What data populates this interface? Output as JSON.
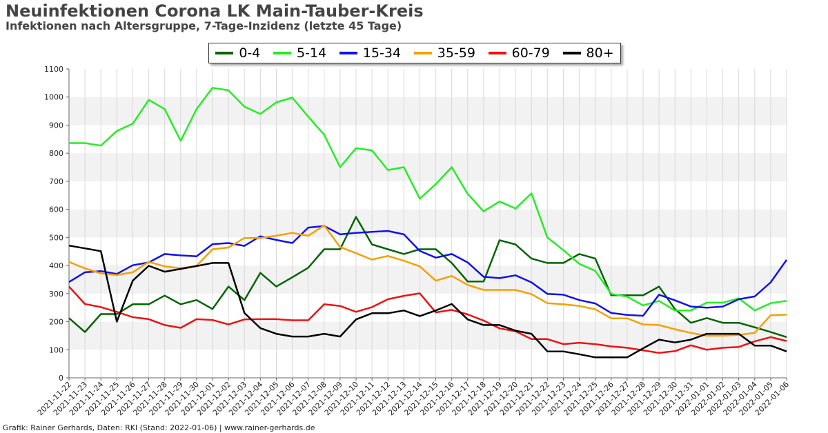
{
  "title": "Neuinfektionen Corona LK Main-Tauber-Kreis",
  "subtitle": "Infektionen nach Altersgruppe, 7-Tage-Inzidenz (letzte 45 Tage)",
  "footer": "Grafik: Rainer Gerhards, Daten: RKI (Stand: 2022-01-06) | www.rainer-gerhards.de",
  "chart_data": {
    "type": "line",
    "ylim": [
      0,
      1100
    ],
    "yticks": [
      0,
      100,
      200,
      300,
      400,
      500,
      600,
      700,
      800,
      900,
      1000,
      1100
    ],
    "grid": true,
    "legend_position": "top-center",
    "x": [
      "2021-11-22",
      "2021-11-23",
      "2021-11-24",
      "2021-11-25",
      "2021-11-26",
      "2021-11-27",
      "2021-11-28",
      "2021-11-29",
      "2021-11-30",
      "2021-12-01",
      "2021-12-02",
      "2021-12-03",
      "2021-12-04",
      "2021-12-05",
      "2021-12-06",
      "2021-12-07",
      "2021-12-08",
      "2021-12-09",
      "2021-12-10",
      "2021-12-11",
      "2021-12-12",
      "2021-12-13",
      "2021-12-14",
      "2021-12-15",
      "2021-12-16",
      "2021-12-17",
      "2021-12-18",
      "2021-12-19",
      "2021-12-20",
      "2021-12-21",
      "2021-12-22",
      "2021-12-23",
      "2021-12-24",
      "2021-12-25",
      "2021-12-26",
      "2021-12-27",
      "2021-12-28",
      "2021-12-29",
      "2021-12-30",
      "2021-12-31",
      "2022-01-01",
      "2022-01-02",
      "2022-01-03",
      "2022-01-04",
      "2022-01-05",
      "2022-01-06"
    ],
    "series": [
      {
        "name": "0-4",
        "color": "#006400",
        "values": [
          213,
          163,
          227,
          227,
          262,
          262,
          293,
          262,
          277,
          245,
          325,
          277,
          374,
          325,
          358,
          392,
          458,
          458,
          573,
          475,
          458,
          441,
          458,
          458,
          409,
          343,
          343,
          490,
          475,
          425,
          409,
          409,
          441,
          425,
          294,
          294,
          294,
          325,
          245,
          196,
          213,
          196,
          196,
          180,
          163,
          145
        ]
      },
      {
        "name": "5-14",
        "color": "#22ee22",
        "values": [
          836,
          836,
          827,
          879,
          905,
          990,
          957,
          844,
          957,
          1033,
          1024,
          966,
          940,
          981,
          998,
          930,
          866,
          750,
          818,
          810,
          740,
          750,
          638,
          690,
          750,
          655,
          593,
          628,
          603,
          657,
          500,
          455,
          406,
          381,
          299,
          289,
          258,
          274,
          240,
          240,
          268,
          268,
          283,
          240,
          266,
          274
        ]
      },
      {
        "name": "15-34",
        "color": "#1010ee",
        "values": [
          341,
          376,
          380,
          370,
          401,
          411,
          441,
          436,
          433,
          476,
          480,
          470,
          504,
          491,
          480,
          535,
          541,
          511,
          516,
          520,
          523,
          511,
          452,
          428,
          441,
          411,
          360,
          355,
          365,
          340,
          299,
          296,
          277,
          265,
          231,
          224,
          221,
          296,
          276,
          254,
          250,
          254,
          280,
          290,
          340,
          420
        ]
      },
      {
        "name": "35-59",
        "color": "#f5a000",
        "values": [
          413,
          390,
          372,
          366,
          376,
          413,
          397,
          390,
          399,
          458,
          464,
          498,
          498,
          506,
          516,
          506,
          543,
          466,
          444,
          421,
          434,
          417,
          397,
          346,
          363,
          331,
          313,
          313,
          313,
          298,
          266,
          262,
          256,
          244,
          212,
          212,
          190,
          188,
          173,
          160,
          150,
          150,
          153,
          160,
          223,
          225
        ]
      },
      {
        "name": "60-79",
        "color": "#ee1111",
        "values": [
          325,
          263,
          252,
          235,
          216,
          209,
          188,
          178,
          209,
          206,
          190,
          208,
          209,
          209,
          205,
          205,
          262,
          256,
          235,
          252,
          280,
          292,
          301,
          233,
          242,
          226,
          204,
          176,
          166,
          138,
          138,
          120,
          125,
          120,
          112,
          107,
          98,
          89,
          95,
          116,
          100,
          107,
          110,
          130,
          145,
          131
        ]
      },
      {
        "name": "80+",
        "color": "#000000",
        "values": [
          471,
          461,
          451,
          200,
          346,
          399,
          378,
          388,
          398,
          409,
          409,
          231,
          177,
          157,
          147,
          147,
          157,
          147,
          208,
          230,
          230,
          240,
          220,
          240,
          263,
          208,
          188,
          188,
          168,
          157,
          94,
          94,
          84,
          73,
          73,
          73,
          105,
          136,
          126,
          136,
          157,
          157,
          157,
          115,
          115,
          94
        ]
      }
    ]
  }
}
